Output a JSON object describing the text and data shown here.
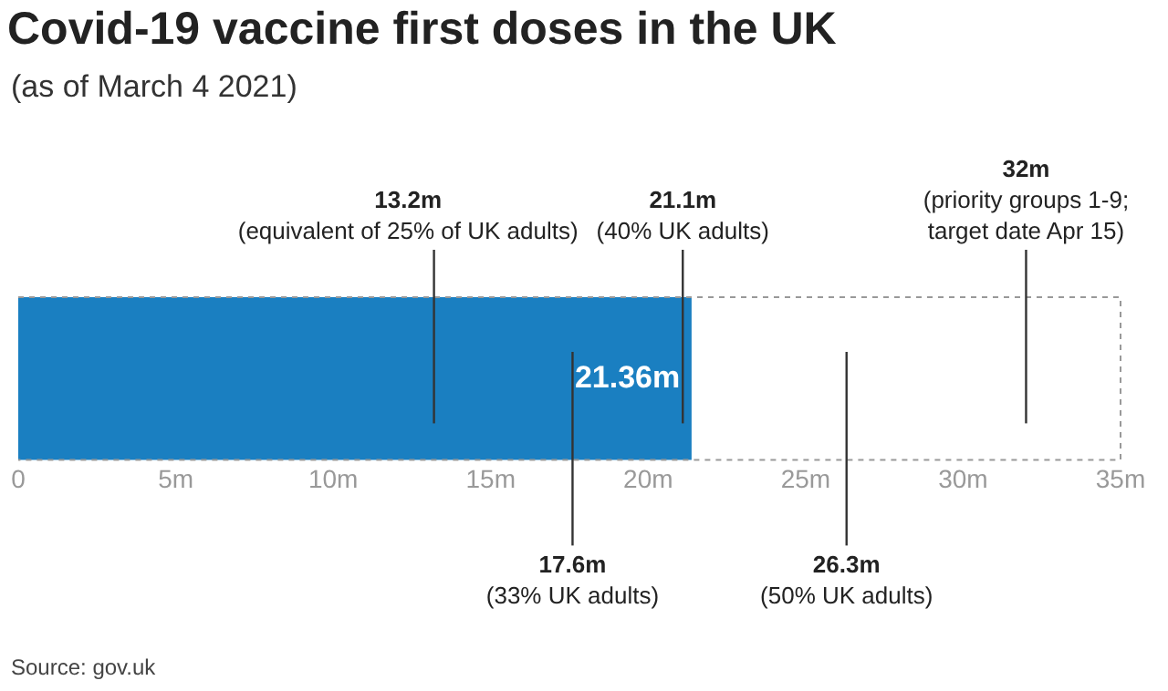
{
  "chart_data": {
    "type": "bar",
    "orientation": "horizontal",
    "title": "Covid-19 vaccine first doses in the UK",
    "subtitle": "(as of March 4 2021)",
    "categories": [
      null
    ],
    "values": [
      21.36
    ],
    "color": "#1a7fc1",
    "value_labels": [
      "21.36m"
    ],
    "xlim": [
      0,
      35
    ],
    "xticks": [
      0,
      {
        "value": 5,
        "label": "5m"
      },
      {
        "value": 10,
        "label": "10m"
      },
      {
        "value": 15,
        "label": "15m"
      },
      {
        "value": 20,
        "label": "20m"
      },
      {
        "value": 25,
        "label": "25m"
      },
      {
        "value": 30,
        "label": "30m"
      },
      {
        "value": 35,
        "label": "35m"
      }
    ],
    "grid": false,
    "legend": false,
    "ref_lines": [
      {
        "axis": "x",
        "value": 13.2,
        "label": "13.2m\n(equivalent of 25% of UK adults)"
      },
      {
        "axis": "x",
        "value": 17.6,
        "label": "17.6m\n(33% UK adults)"
      },
      {
        "axis": "x",
        "value": 21.1,
        "label": "21.1m\n(40% UK adults)"
      },
      {
        "axis": "x",
        "value": 26.3,
        "label": "26.3m\n(50% UK adults)"
      },
      {
        "axis": "x",
        "value": 32,
        "label": "32m\n(priority groups 1-9;\ntarget date Apr 15)"
      }
    ],
    "annotations": [
      "Source: gov.uk"
    ]
  }
}
